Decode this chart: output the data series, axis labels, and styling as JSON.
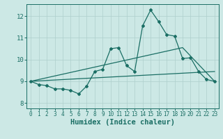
{
  "xlabel": "Humidex (Indice chaleur)",
  "bg_color": "#cce8e5",
  "grid_color": "#aecfcc",
  "line_color": "#1a6e64",
  "xlim": [
    -0.5,
    23.5
  ],
  "ylim": [
    7.75,
    12.55
  ],
  "xticks": [
    0,
    1,
    2,
    3,
    4,
    5,
    6,
    7,
    8,
    9,
    10,
    11,
    12,
    13,
    14,
    15,
    16,
    17,
    18,
    19,
    20,
    21,
    22,
    23
  ],
  "yticks": [
    8,
    9,
    10,
    11,
    12
  ],
  "line1_x": [
    0,
    1,
    2,
    3,
    4,
    5,
    6,
    7,
    8,
    9,
    10,
    11,
    12,
    13,
    14,
    15,
    16,
    17,
    18,
    19,
    20,
    21,
    22,
    23
  ],
  "line1_y": [
    9.0,
    8.85,
    8.8,
    8.65,
    8.65,
    8.58,
    8.42,
    8.78,
    9.45,
    9.55,
    10.5,
    10.55,
    9.72,
    9.45,
    11.55,
    12.28,
    11.75,
    11.15,
    11.08,
    10.05,
    10.08,
    9.45,
    9.08,
    9.0
  ],
  "line2_x": [
    0,
    23
  ],
  "line2_y": [
    9.0,
    9.45
  ],
  "line3_x": [
    0,
    19,
    23
  ],
  "line3_y": [
    9.0,
    10.55,
    9.0
  ],
  "marker": "D",
  "markersize": 2.0,
  "linewidth": 0.9
}
